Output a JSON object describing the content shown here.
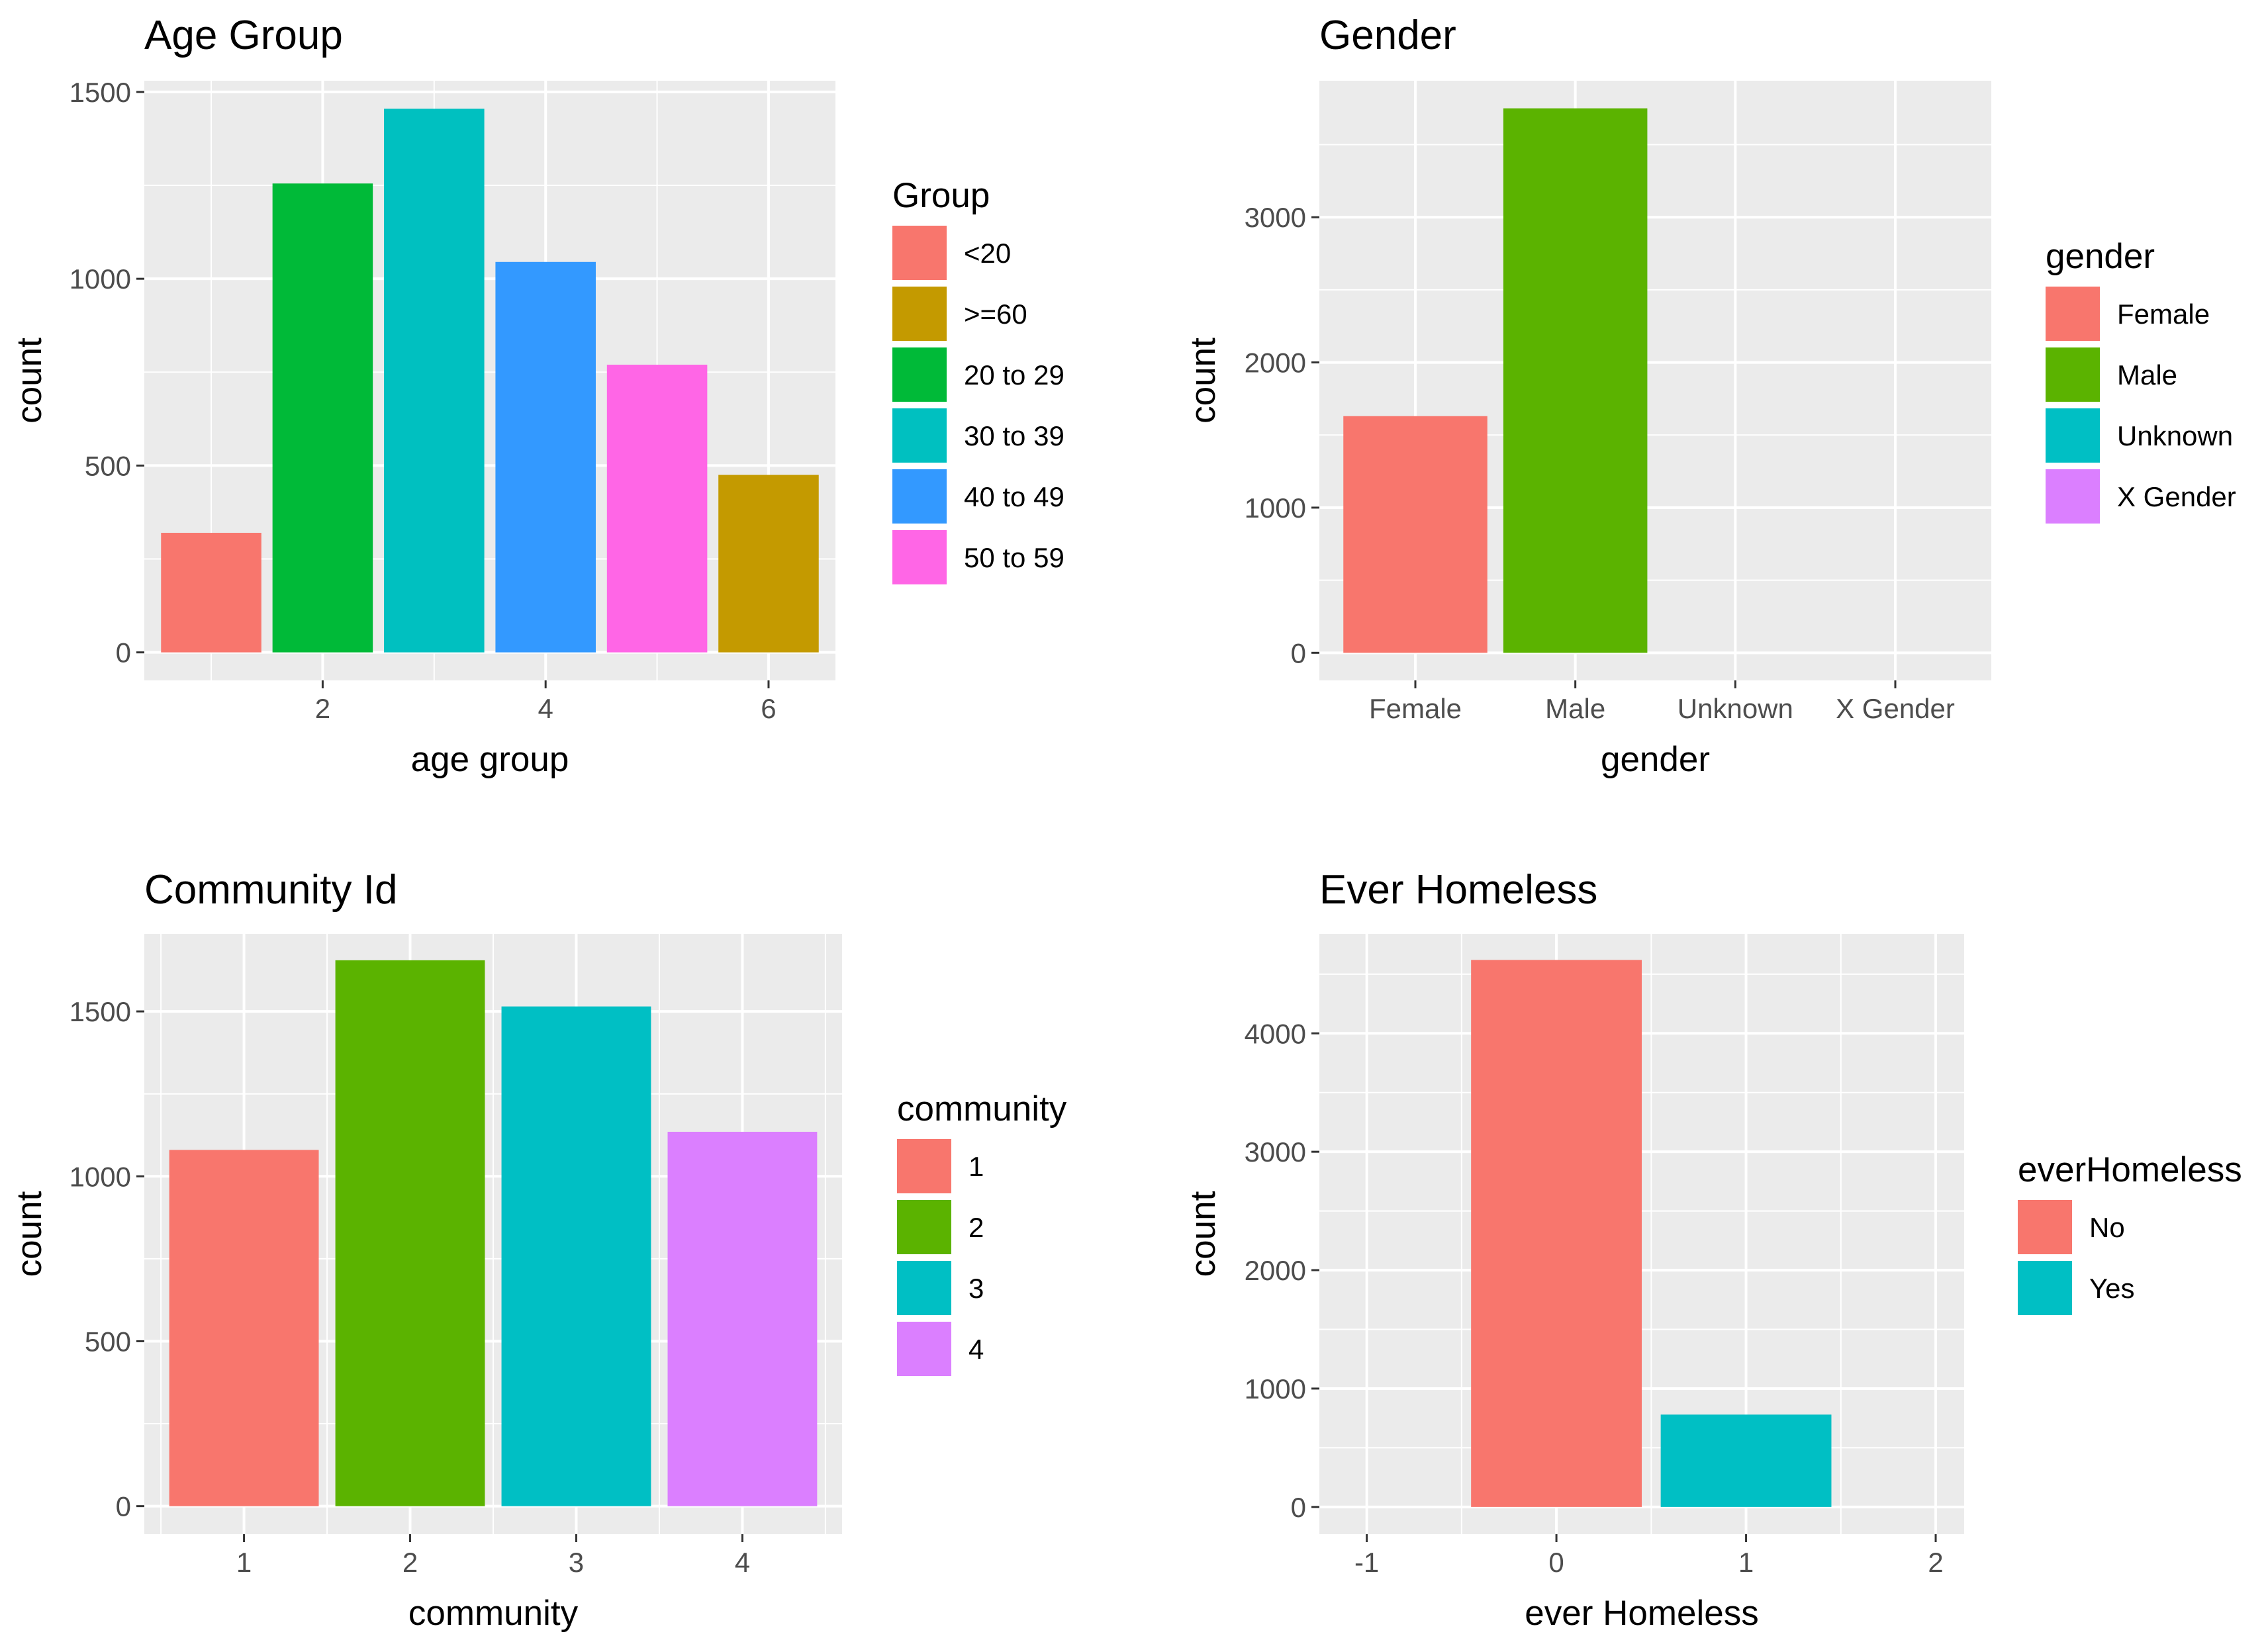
{
  "chart_data": [
    {
      "id": "age",
      "type": "bar",
      "title": "Age Group",
      "xlabel": "age group",
      "ylabel": "count",
      "x": [
        1,
        2,
        3,
        4,
        5,
        6
      ],
      "values": [
        320,
        1255,
        1455,
        1045,
        770,
        475
      ],
      "bar_group": [
        "<20",
        "20 to 29",
        "30 to 39",
        "40 to 49",
        "50 to 59",
        ">=60"
      ],
      "xlim": [
        0.4,
        6.6
      ],
      "ylim": [
        -75,
        1530
      ],
      "x_ticks": [
        2,
        4,
        6
      ],
      "y_ticks": [
        0,
        500,
        1000,
        1500
      ],
      "grid": true,
      "legend": {
        "title": "Group",
        "position": "right",
        "entries": [
          {
            "label": "<20",
            "color": "#F8766D"
          },
          {
            "label": ">=60",
            "color": "#C49A00"
          },
          {
            "label": "20 to 29",
            "color": "#00BA38"
          },
          {
            "label": "30 to 39",
            "color": "#00C0C0"
          },
          {
            "label": "40 to 49",
            "color": "#3399FF"
          },
          {
            "label": "50 to 59",
            "color": "#FF66E6"
          }
        ]
      }
    },
    {
      "id": "gender",
      "type": "bar",
      "title": "Gender",
      "xlabel": "gender",
      "ylabel": "count",
      "categories": [
        "Female",
        "Male",
        "Unknown",
        "X Gender"
      ],
      "values": [
        1630,
        3750,
        0,
        0
      ],
      "xlim": [
        0.4,
        4.6
      ],
      "ylim": [
        -190,
        3940
      ],
      "y_ticks": [
        0,
        1000,
        2000,
        3000
      ],
      "grid": true,
      "legend": {
        "title": "gender",
        "position": "right",
        "entries": [
          {
            "label": "Female",
            "color": "#F8766D"
          },
          {
            "label": "Male",
            "color": "#5BB300"
          },
          {
            "label": "Unknown",
            "color": "#00BFC4"
          },
          {
            "label": "X Gender",
            "color": "#DB7FFF"
          }
        ]
      }
    },
    {
      "id": "community",
      "type": "bar",
      "title": "Community Id",
      "xlabel": "community",
      "ylabel": "count",
      "x": [
        1,
        2,
        3,
        4
      ],
      "values": [
        1080,
        1655,
        1515,
        1135
      ],
      "bar_group": [
        "1",
        "2",
        "3",
        "4"
      ],
      "xlim": [
        0.4,
        4.6
      ],
      "ylim": [
        -85,
        1735
      ],
      "x_ticks": [
        1,
        2,
        3,
        4
      ],
      "y_ticks": [
        0,
        500,
        1000,
        1500
      ],
      "grid": true,
      "legend": {
        "title": "community",
        "position": "right",
        "entries": [
          {
            "label": "1",
            "color": "#F8766D"
          },
          {
            "label": "2",
            "color": "#5BB300"
          },
          {
            "label": "3",
            "color": "#00BFC4"
          },
          {
            "label": "4",
            "color": "#DB7FFF"
          }
        ]
      }
    },
    {
      "id": "homeless",
      "type": "bar",
      "title": "Ever Homeless",
      "xlabel": "ever Homeless",
      "ylabel": "count",
      "x": [
        0,
        1
      ],
      "values": [
        4620,
        780
      ],
      "bar_group": [
        "No",
        "Yes"
      ],
      "bar_width": 0.9,
      "xlim": [
        -1.25,
        2.15
      ],
      "ylim": [
        -230,
        4840
      ],
      "x_ticks": [
        -1,
        0,
        1,
        2
      ],
      "y_ticks": [
        0,
        1000,
        2000,
        3000,
        4000
      ],
      "grid": true,
      "legend": {
        "title": "everHomeless",
        "position": "right",
        "entries": [
          {
            "label": "No",
            "color": "#F8766D"
          },
          {
            "label": "Yes",
            "color": "#00BFC4"
          }
        ]
      }
    }
  ]
}
